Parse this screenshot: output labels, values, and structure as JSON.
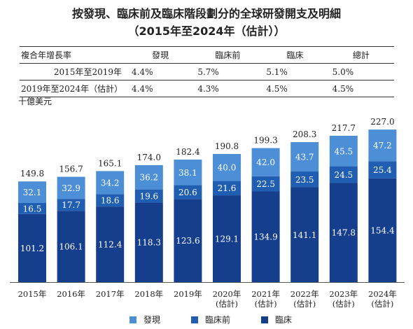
{
  "title_line1": "按發現、臨床前及臨床階段劃分的全球研發開支及明細",
  "title_line2": "（2015年至2024年（估計））",
  "cagr_table": {
    "header": [
      "複合年增長率",
      "發現",
      "臨床前",
      "臨床",
      "總計"
    ],
    "rows": [
      {
        "label": "2015年至2019年",
        "values": [
          "4.4%",
          "5.7%",
          "5.1%",
          "5.0%"
        ]
      },
      {
        "label": "2019年至2024年（估計）",
        "values": [
          "4.4%",
          "4.3%",
          "4.5%",
          "4.5%"
        ]
      }
    ]
  },
  "unit_label": "十億美元",
  "colors": {
    "discovery": "#4d8fd6",
    "preclinical": "#1f5eb0",
    "clinical": "#153f8c"
  },
  "chart_data": {
    "type": "bar",
    "stacked": true,
    "categories": [
      [
        "2015年"
      ],
      [
        "2016年"
      ],
      [
        "2017年"
      ],
      [
        "2018年"
      ],
      [
        "2019年"
      ],
      [
        "2020年",
        "(估計)"
      ],
      [
        "2021年",
        "(估計)"
      ],
      [
        "2022年",
        "(估計)"
      ],
      [
        "2023年",
        "(估計)"
      ],
      [
        "2024年",
        "(估計)"
      ]
    ],
    "series": [
      {
        "name": "臨床",
        "values": [
          101.2,
          106.1,
          112.4,
          118.3,
          123.6,
          129.1,
          134.9,
          141.1,
          147.8,
          154.4
        ]
      },
      {
        "name": "臨床前",
        "values": [
          16.5,
          17.7,
          18.6,
          19.6,
          20.6,
          21.6,
          22.5,
          23.5,
          24.5,
          25.4
        ]
      },
      {
        "name": "發現",
        "values": [
          32.1,
          32.9,
          34.2,
          36.2,
          38.1,
          40.0,
          42.0,
          43.7,
          45.5,
          47.2
        ]
      }
    ],
    "totals": [
      149.8,
      156.7,
      165.1,
      174.0,
      182.4,
      190.8,
      199.3,
      208.3,
      217.7,
      227.0
    ],
    "legend": [
      "發現",
      "臨床前",
      "臨床"
    ],
    "legend_position": "bottom"
  }
}
